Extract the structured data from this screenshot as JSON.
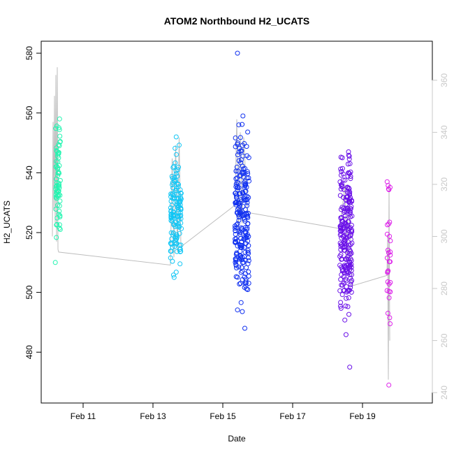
{
  "chart_data": {
    "type": "scatter",
    "title": "ATOM2 Northbound H2_UCATS",
    "xlabel": "Date",
    "ylabel": "H2_UCATS",
    "x_unit": "date (February)",
    "xlim": [
      9.8,
      21.0
    ],
    "ylim": [
      463,
      584
    ],
    "x_ticks": [
      11,
      13,
      15,
      17,
      19
    ],
    "x_tick_labels": [
      "Feb 11",
      "Feb 13",
      "Feb 15",
      "Feb 17",
      "Feb 19"
    ],
    "y_ticks": [
      480,
      500,
      520,
      540,
      560,
      580
    ],
    "y_tick_labels": [
      "480",
      "500",
      "520",
      "540",
      "560",
      "580"
    ],
    "secondary_axis": {
      "position": "right",
      "color": "#c8c8c8",
      "lim": [
        236,
        375
      ],
      "ticks": [
        240,
        260,
        280,
        300,
        320,
        340,
        360
      ],
      "tick_labels": [
        "240",
        "260",
        "280",
        "300",
        "320",
        "340",
        "360"
      ]
    },
    "points_color_scale": [
      "#21ffb4",
      "#00bbff",
      "#0011ff",
      "#6600ff",
      "#dd00ff"
    ],
    "clusters": [
      {
        "date": "Feb 10",
        "x": [
          10.2,
          10.35
        ],
        "n": 70,
        "y": [
          510,
          558
        ],
        "center": 537,
        "color": "#21f5b0"
      },
      {
        "date": "Feb 13",
        "x": [
          13.5,
          13.82
        ],
        "n": 130,
        "y": [
          505,
          552
        ],
        "center": 527,
        "color": "#10c6f5"
      },
      {
        "date": "Feb 15",
        "x": [
          15.35,
          15.75
        ],
        "n": 230,
        "y": [
          488,
          559
        ],
        "center": 525,
        "color": "#1030f0",
        "outliers": [
          [
            15.42,
            580
          ]
        ]
      },
      {
        "date": "Feb 18",
        "x": [
          18.35,
          18.7
        ],
        "n": 220,
        "y": [
          475,
          547
        ],
        "center": 518,
        "color": "#6a10e8"
      },
      {
        "date": "Feb 19",
        "x": [
          19.7,
          19.8
        ],
        "n": 30,
        "y": [
          469,
          537
        ],
        "center": 512,
        "color": "#dd20ea"
      }
    ],
    "secondary_series": {
      "name": "",
      "color": "#bdbdbd",
      "style": "line",
      "path": [
        [
          10.12,
          300
        ],
        [
          10.14,
          344
        ],
        [
          10.16,
          310
        ],
        [
          10.18,
          354
        ],
        [
          10.2,
          305
        ],
        [
          10.22,
          362
        ],
        [
          10.24,
          298
        ],
        [
          10.26,
          365
        ],
        [
          10.28,
          295
        ],
        [
          10.3,
          294
        ],
        [
          13.5,
          289
        ],
        [
          13.55,
          330
        ],
        [
          13.6,
          292
        ],
        [
          13.65,
          335
        ],
        [
          13.7,
          294
        ],
        [
          13.75,
          338
        ],
        [
          13.8,
          296
        ],
        [
          15.35,
          312
        ],
        [
          15.4,
          345
        ],
        [
          15.45,
          300
        ],
        [
          15.5,
          340
        ],
        [
          15.55,
          305
        ],
        [
          15.6,
          338
        ],
        [
          15.7,
          310
        ],
        [
          15.8,
          309
        ],
        [
          18.35,
          303
        ],
        [
          18.5,
          320
        ],
        [
          18.55,
          290
        ],
        [
          18.6,
          318
        ],
        [
          18.7,
          281
        ],
        [
          19.7,
          285
        ],
        [
          19.72,
          300
        ],
        [
          19.74,
          245
        ],
        [
          19.76,
          320
        ],
        [
          19.78,
          260
        ]
      ]
    }
  }
}
